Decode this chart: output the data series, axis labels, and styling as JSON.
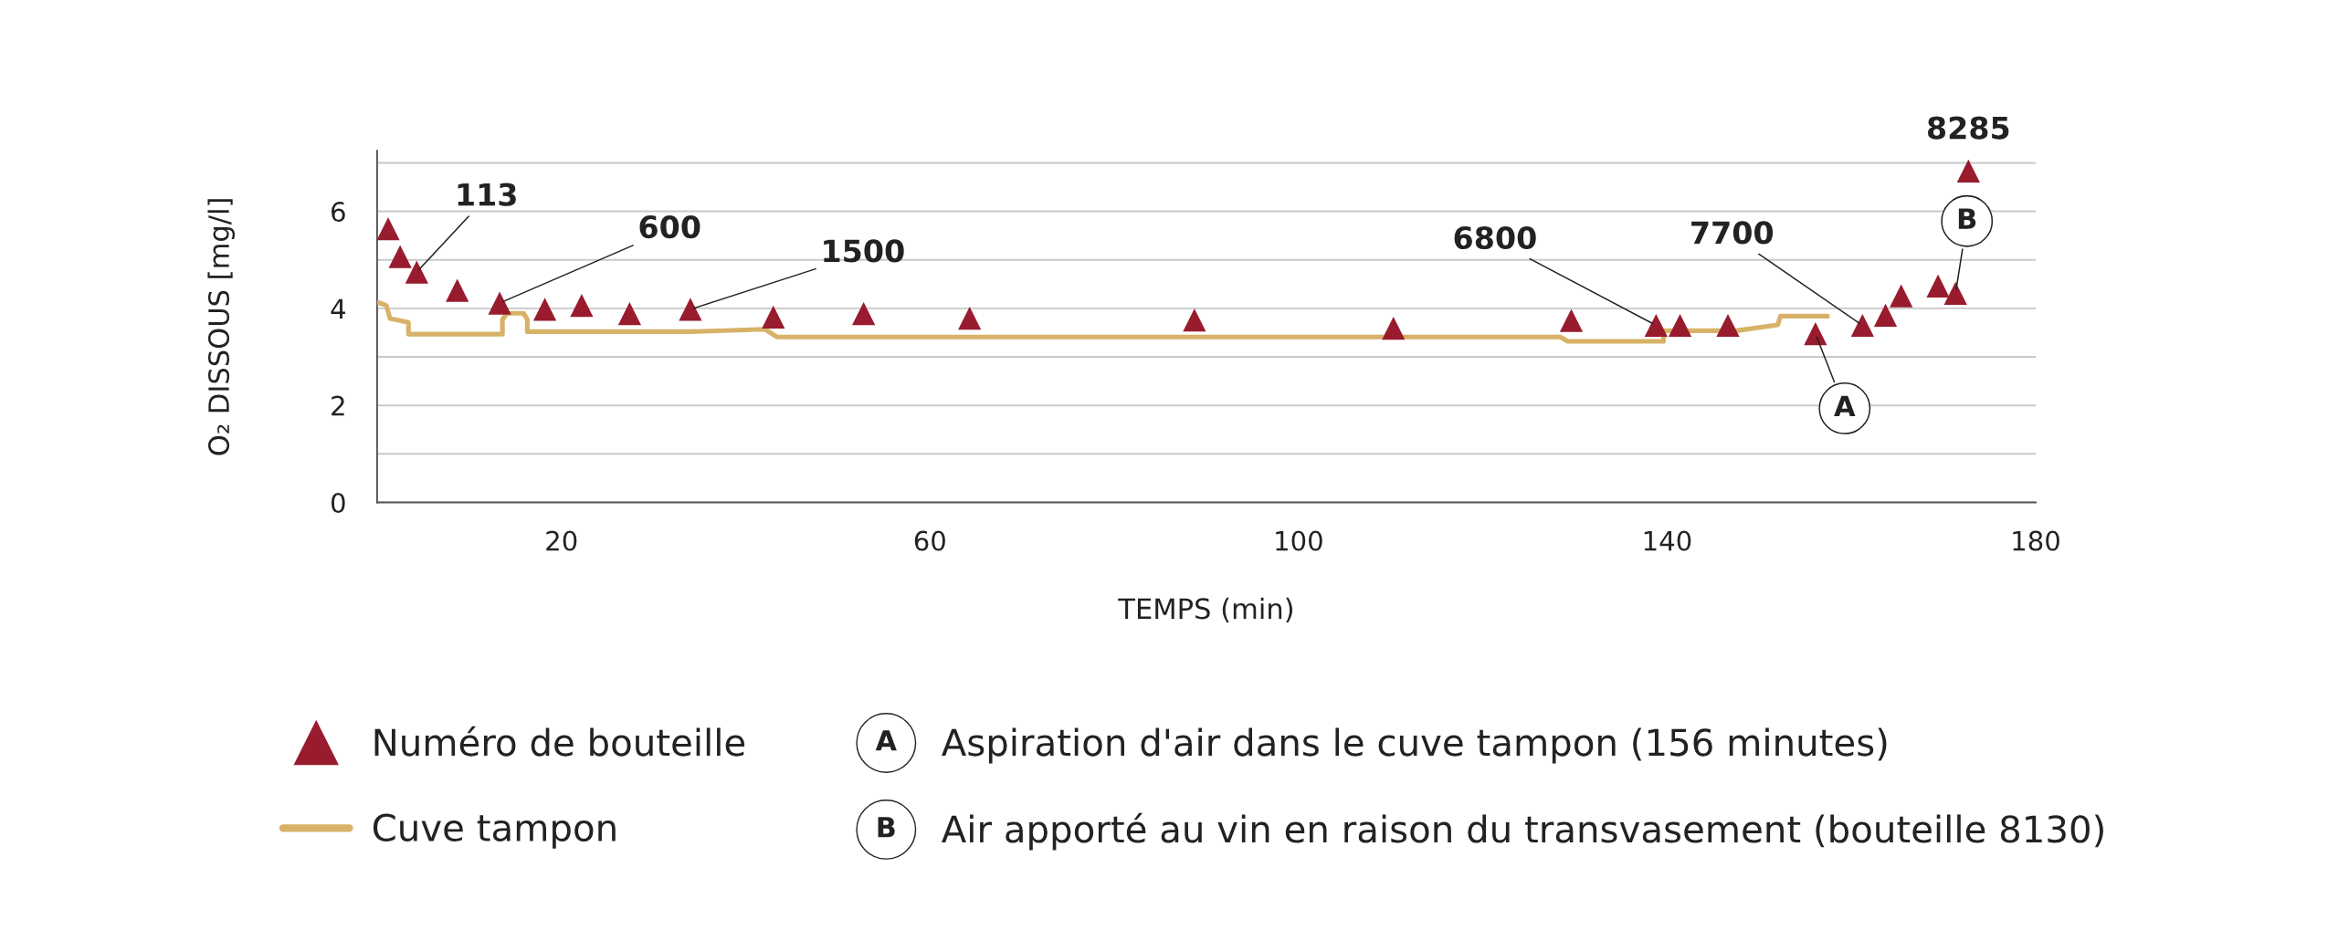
{
  "chart_data": {
    "type": "scatter",
    "xlabel": "TEMPS (min)",
    "ylabel": "O₂ DISSOUS [mg/l]",
    "xlim": [
      0,
      180
    ],
    "xticks": [
      20,
      60,
      100,
      140,
      180
    ],
    "ylim": [
      0,
      7.25
    ],
    "yticks": [
      0,
      {
        "value": 1,
        "label": null
      },
      2,
      {
        "value": 3,
        "label": null
      },
      4,
      {
        "value": 5,
        "label": null
      },
      6,
      {
        "value": 7,
        "label": null
      }
    ],
    "grid": "y",
    "legend": "bottom",
    "series": [
      {
        "name": "Numéro de bouteille",
        "marker": "triangle",
        "color": "#981b2e",
        "x": [
          1.2,
          2.5,
          4.3,
          8.7,
          13.3,
          18.2,
          22.2,
          27.4,
          34.0,
          43.0,
          52.8,
          64.3,
          88.7,
          110.3,
          129.6,
          138.8,
          141.4,
          146.6,
          156.1,
          161.2,
          163.7,
          165.4,
          169.4,
          171.3,
          172.7
        ],
        "values": [
          5.64,
          5.07,
          4.75,
          4.37,
          4.11,
          3.98,
          4.06,
          3.89,
          3.98,
          3.82,
          3.89,
          3.8,
          3.76,
          3.59,
          3.75,
          3.65,
          3.65,
          3.65,
          3.48,
          3.65,
          3.86,
          4.26,
          4.46,
          4.31,
          6.83
        ]
      },
      {
        "name": "Cuve tampon",
        "type": "line",
        "line_style": "solid",
        "color": "#d8b268",
        "x": [
          0,
          1.0,
          1.4,
          3.4,
          3.4,
          13.6,
          13.6,
          14.1,
          15.9,
          16.3,
          16.3,
          34.1,
          42.1,
          43.4,
          128.4,
          129.2,
          139.6,
          139.6,
          147.5,
          152.0,
          152.3,
          157.4
        ],
        "values": [
          4.13,
          4.06,
          3.79,
          3.71,
          3.47,
          3.47,
          3.77,
          3.9,
          3.9,
          3.77,
          3.52,
          3.52,
          3.57,
          3.41,
          3.41,
          3.32,
          3.32,
          3.54,
          3.54,
          3.66,
          3.84,
          3.84
        ]
      }
    ],
    "annotations": [
      {
        "text": "113",
        "x": 4.3,
        "y": 4.75
      },
      {
        "text": "600",
        "x": 13.3,
        "y": 4.11
      },
      {
        "text": "1500",
        "x": 34.0,
        "y": 3.98
      },
      {
        "text": "6800",
        "x": 138.8,
        "y": 3.65
      },
      {
        "text": "7700",
        "x": 161.2,
        "y": 3.65
      },
      {
        "text": "8285",
        "x": 172.7,
        "y": 6.83
      },
      {
        "text": "A",
        "x": 156.1,
        "y": 3.48
      },
      {
        "text": "B",
        "x": 171.3,
        "y": 4.31
      },
      "Aspiration d'air dans le cuve tampon (156 minutes)",
      "Air apporté au vin en raison du transvasement (bouteille 8130)"
    ]
  }
}
